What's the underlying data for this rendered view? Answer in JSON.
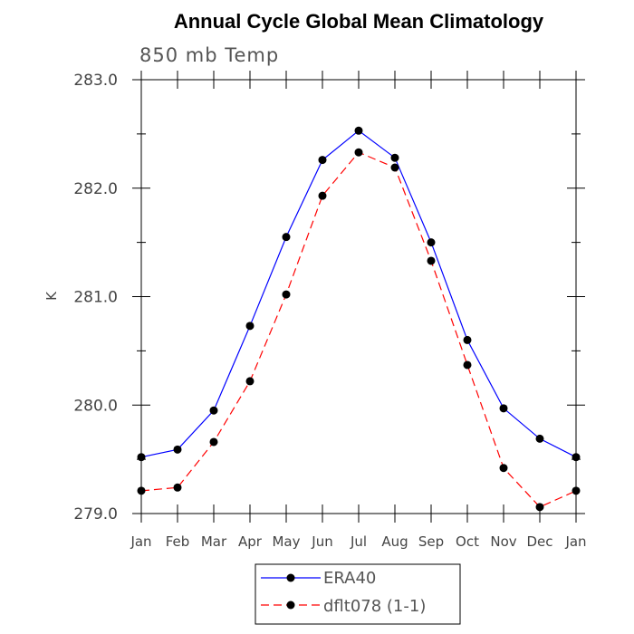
{
  "chart_data": {
    "type": "line",
    "title": "Annual Cycle Global Mean Climatology",
    "subtitle": "850 mb Temp",
    "ylabel": "K",
    "xlabel": "",
    "categories": [
      "Jan",
      "Feb",
      "Mar",
      "Apr",
      "May",
      "Jun",
      "Jul",
      "Aug",
      "Sep",
      "Oct",
      "Nov",
      "Dec",
      "Jan"
    ],
    "ylim": [
      279.0,
      283.0
    ],
    "yticks": [
      "279.0",
      "280.0",
      "281.0",
      "282.0",
      "283.0"
    ],
    "grid": false,
    "legend_position": "bottom",
    "series": [
      {
        "name": "ERA40",
        "color": "#0000ff",
        "line_style": "solid",
        "marker": "circle",
        "values": [
          279.52,
          279.59,
          279.95,
          280.73,
          281.55,
          282.26,
          282.53,
          282.28,
          281.5,
          280.6,
          279.97,
          279.69,
          279.52
        ]
      },
      {
        "name": "dflt078 (1-1)",
        "color": "#ff0000",
        "line_style": "dashed",
        "marker": "circle",
        "values": [
          279.21,
          279.24,
          279.66,
          280.22,
          281.02,
          281.93,
          282.33,
          282.19,
          281.33,
          280.37,
          279.42,
          279.06,
          279.21
        ]
      }
    ]
  }
}
